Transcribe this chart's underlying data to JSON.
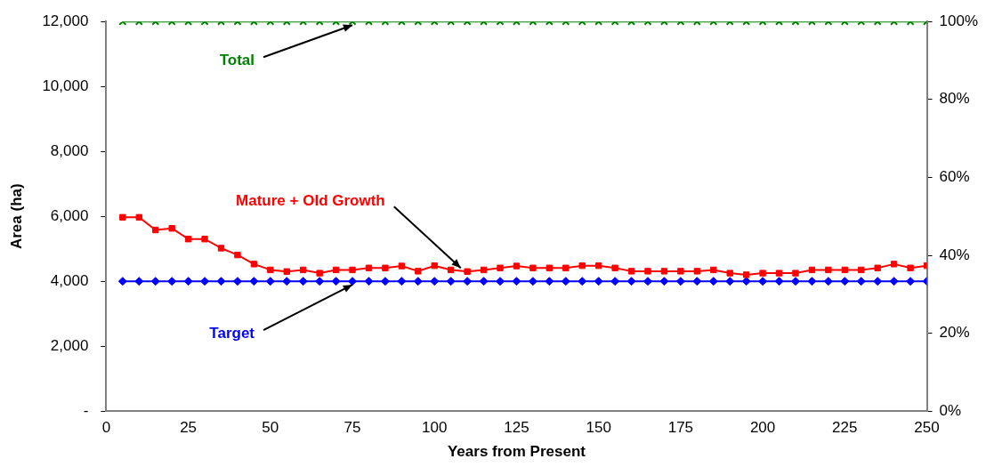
{
  "chart_data": {
    "type": "line",
    "xlabel": "Years from Present",
    "ylabel": "Area (ha)",
    "x": [
      5,
      10,
      15,
      20,
      25,
      30,
      35,
      40,
      45,
      50,
      55,
      60,
      65,
      70,
      75,
      80,
      85,
      90,
      95,
      100,
      105,
      110,
      115,
      120,
      125,
      130,
      135,
      140,
      145,
      150,
      155,
      160,
      165,
      170,
      175,
      180,
      185,
      190,
      195,
      200,
      205,
      210,
      215,
      220,
      225,
      230,
      235,
      240,
      245,
      250
    ],
    "series": [
      {
        "name": "Total",
        "color": "#008000",
        "marker": "cross",
        "values": [
          12000,
          12000,
          12000,
          12000,
          12000,
          12000,
          12000,
          12000,
          12000,
          12000,
          12000,
          12000,
          12000,
          12000,
          12000,
          12000,
          12000,
          12000,
          12000,
          12000,
          12000,
          12000,
          12000,
          12000,
          12000,
          12000,
          12000,
          12000,
          12000,
          12000,
          12000,
          12000,
          12000,
          12000,
          12000,
          12000,
          12000,
          12000,
          12000,
          12000,
          12000,
          12000,
          12000,
          12000,
          12000,
          12000,
          12000,
          12000,
          12000,
          12000
        ]
      },
      {
        "name": "Mature + Old Growth",
        "color": "#ff0000",
        "marker": "square",
        "values": [
          5970,
          5970,
          5580,
          5630,
          5300,
          5300,
          5020,
          4810,
          4530,
          4350,
          4300,
          4350,
          4250,
          4350,
          4350,
          4410,
          4410,
          4470,
          4310,
          4480,
          4350,
          4300,
          4350,
          4410,
          4470,
          4410,
          4410,
          4410,
          4480,
          4480,
          4410,
          4310,
          4310,
          4310,
          4310,
          4310,
          4350,
          4250,
          4200,
          4250,
          4250,
          4250,
          4350,
          4350,
          4350,
          4350,
          4410,
          4530,
          4410,
          4480
        ]
      },
      {
        "name": "Target",
        "color": "#0000ff",
        "marker": "diamond",
        "values": [
          4000,
          4000,
          4000,
          4000,
          4000,
          4000,
          4000,
          4000,
          4000,
          4000,
          4000,
          4000,
          4000,
          4000,
          4000,
          4000,
          4000,
          4000,
          4000,
          4000,
          4000,
          4000,
          4000,
          4000,
          4000,
          4000,
          4000,
          4000,
          4000,
          4000,
          4000,
          4000,
          4000,
          4000,
          4000,
          4000,
          4000,
          4000,
          4000,
          4000,
          4000,
          4000,
          4000,
          4000,
          4000,
          4000,
          4000,
          4000,
          4000,
          4000
        ]
      }
    ],
    "xlim": [
      0,
      250
    ],
    "xticks": [
      0,
      25,
      50,
      75,
      100,
      125,
      150,
      175,
      200,
      225,
      250
    ],
    "ylim": [
      0,
      12000
    ],
    "yticks": [
      {
        "value": 0,
        "label": "-"
      },
      {
        "value": 2000,
        "label": "2,000"
      },
      {
        "value": 4000,
        "label": "4,000"
      },
      {
        "value": 6000,
        "label": "6,000"
      },
      {
        "value": 8000,
        "label": "8,000"
      },
      {
        "value": 10000,
        "label": "10,000"
      },
      {
        "value": 12000,
        "label": "12,000"
      }
    ],
    "y2lim": [
      0,
      100
    ],
    "y2ticks": [
      {
        "value": 0,
        "label": "0%"
      },
      {
        "value": 20,
        "label": "20%"
      },
      {
        "value": 40,
        "label": "40%"
      },
      {
        "value": 60,
        "label": "60%"
      },
      {
        "value": 80,
        "label": "80%"
      },
      {
        "value": 100,
        "label": "100%"
      }
    ],
    "legend": false,
    "grid": false,
    "line_style": "solid"
  }
}
